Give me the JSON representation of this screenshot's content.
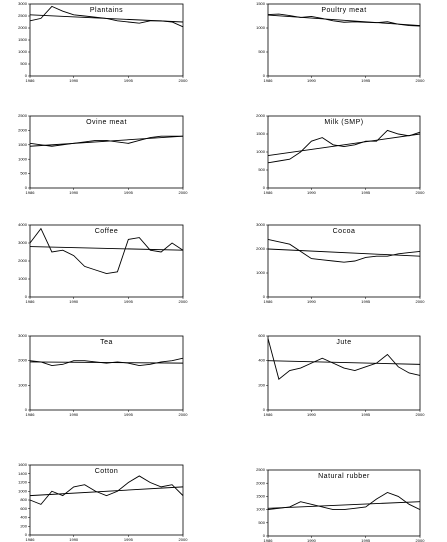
{
  "chart_data": [
    {
      "type": "line",
      "title": "Plantains",
      "x": [
        1986,
        1987,
        1988,
        1989,
        1990,
        1991,
        1992,
        1993,
        1994,
        1995,
        1996,
        1997,
        1998,
        1999,
        2000
      ],
      "xlim": [
        1986,
        2000
      ],
      "xticks": [
        1986,
        1990,
        1995,
        2000
      ],
      "ylim": [
        0,
        3000
      ],
      "yticks": [
        0,
        500,
        1000,
        1500,
        2000,
        2500,
        3000
      ],
      "series": [
        {
          "color": "#000",
          "values": [
            2300,
            2400,
            2900,
            2700,
            2550,
            2500,
            2450,
            2400,
            2300,
            2250,
            2200,
            2300,
            2300,
            2250,
            2050
          ]
        },
        {
          "color": "#000",
          "x": [
            1986,
            2000
          ],
          "values": [
            2550,
            2250
          ]
        }
      ]
    },
    {
      "type": "line",
      "title": "Poultry meat",
      "x": [
        1986,
        1987,
        1988,
        1989,
        1990,
        1991,
        1992,
        1993,
        1994,
        1995,
        1996,
        1997,
        1998,
        1999,
        2000
      ],
      "xlim": [
        1986,
        2000
      ],
      "xticks": [
        1986,
        1990,
        1995,
        2000
      ],
      "ylim": [
        0,
        1500
      ],
      "yticks": [
        0,
        500,
        1000,
        1500
      ],
      "series": [
        {
          "color": "#000",
          "values": [
            1280,
            1290,
            1260,
            1220,
            1240,
            1200,
            1150,
            1120,
            1130,
            1120,
            1110,
            1130,
            1080,
            1050,
            1040
          ]
        },
        {
          "color": "#000",
          "x": [
            1986,
            2000
          ],
          "values": [
            1270,
            1050
          ]
        }
      ]
    },
    {
      "type": "line",
      "title": "Ovine meat",
      "x": [
        1986,
        1987,
        1988,
        1989,
        1990,
        1991,
        1992,
        1993,
        1994,
        1995,
        1996,
        1997,
        1998,
        1999,
        2000
      ],
      "xlim": [
        1986,
        2000
      ],
      "xticks": [
        1986,
        1990,
        1995,
        2000
      ],
      "ylim": [
        0,
        2500
      ],
      "yticks": [
        0,
        500,
        1000,
        1500,
        2000,
        2500
      ],
      "series": [
        {
          "color": "#000",
          "values": [
            1550,
            1500,
            1450,
            1500,
            1550,
            1600,
            1650,
            1650,
            1600,
            1550,
            1650,
            1750,
            1800,
            1800,
            1800
          ]
        },
        {
          "color": "#000",
          "x": [
            1986,
            2000
          ],
          "values": [
            1450,
            1800
          ]
        }
      ]
    },
    {
      "type": "line",
      "title": "Milk (SMP)",
      "x": [
        1986,
        1987,
        1988,
        1989,
        1990,
        1991,
        1992,
        1993,
        1994,
        1995,
        1996,
        1997,
        1998,
        1999,
        2000
      ],
      "xlim": [
        1986,
        2000
      ],
      "xticks": [
        1986,
        1990,
        1995,
        2000
      ],
      "ylim": [
        0,
        2000
      ],
      "yticks": [
        0,
        500,
        1000,
        1500,
        2000
      ],
      "series": [
        {
          "color": "#000",
          "values": [
            700,
            750,
            800,
            1000,
            1300,
            1400,
            1200,
            1150,
            1200,
            1300,
            1300,
            1600,
            1500,
            1450,
            1550
          ]
        },
        {
          "color": "#000",
          "x": [
            1986,
            2000
          ],
          "values": [
            900,
            1500
          ]
        }
      ]
    },
    {
      "type": "line",
      "title": "Coffee",
      "x": [
        1986,
        1987,
        1988,
        1989,
        1990,
        1991,
        1992,
        1993,
        1994,
        1995,
        1996,
        1997,
        1998,
        1999,
        2000
      ],
      "xlim": [
        1986,
        2000
      ],
      "xticks": [
        1986,
        1990,
        1995,
        2000
      ],
      "ylim": [
        0,
        4000
      ],
      "yticks": [
        0,
        1000,
        2000,
        3000,
        4000
      ],
      "series": [
        {
          "color": "#000",
          "values": [
            3000,
            3800,
            2500,
            2600,
            2300,
            1700,
            1500,
            1300,
            1400,
            3200,
            3300,
            2600,
            2500,
            3000,
            2600
          ]
        },
        {
          "color": "#000",
          "x": [
            1986,
            2000
          ],
          "values": [
            2800,
            2600
          ]
        }
      ]
    },
    {
      "type": "line",
      "title": "Cocoa",
      "x": [
        1986,
        1987,
        1988,
        1989,
        1990,
        1991,
        1992,
        1993,
        1994,
        1995,
        1996,
        1997,
        1998,
        1999,
        2000
      ],
      "xlim": [
        1986,
        2000
      ],
      "xticks": [
        1986,
        1990,
        1995,
        2000
      ],
      "ylim": [
        0,
        3000
      ],
      "yticks": [
        0,
        1000,
        2000,
        3000
      ],
      "series": [
        {
          "color": "#000",
          "values": [
            2400,
            2300,
            2200,
            1900,
            1600,
            1550,
            1500,
            1450,
            1500,
            1650,
            1700,
            1700,
            1800,
            1850,
            1900
          ]
        },
        {
          "color": "#000",
          "x": [
            1986,
            2000
          ],
          "values": [
            2000,
            1700
          ]
        }
      ]
    },
    {
      "type": "line",
      "title": "Tea",
      "x": [
        1986,
        1987,
        1988,
        1989,
        1990,
        1991,
        1992,
        1993,
        1994,
        1995,
        1996,
        1997,
        1998,
        1999,
        2000
      ],
      "xlim": [
        1986,
        2000
      ],
      "xticks": [
        1986,
        1990,
        1995,
        2000
      ],
      "ylim": [
        0,
        3000
      ],
      "yticks": [
        0,
        1000,
        2000,
        3000
      ],
      "series": [
        {
          "color": "#000",
          "values": [
            2000,
            1950,
            1800,
            1850,
            2000,
            2000,
            1950,
            1900,
            1950,
            1900,
            1800,
            1850,
            1950,
            2000,
            2100
          ]
        },
        {
          "color": "#000",
          "x": [
            1986,
            2000
          ],
          "values": [
            1950,
            1900
          ]
        }
      ]
    },
    {
      "type": "line",
      "title": "Jute",
      "x": [
        1986,
        1987,
        1988,
        1989,
        1990,
        1991,
        1992,
        1993,
        1994,
        1995,
        1996,
        1997,
        1998,
        1999,
        2000
      ],
      "xlim": [
        1986,
        2000
      ],
      "xticks": [
        1986,
        1990,
        1995,
        2000
      ],
      "ylim": [
        0,
        600
      ],
      "yticks": [
        0,
        200,
        400,
        600
      ],
      "series": [
        {
          "color": "#000",
          "values": [
            580,
            250,
            320,
            340,
            380,
            420,
            380,
            340,
            320,
            350,
            380,
            450,
            350,
            300,
            280
          ]
        },
        {
          "color": "#000",
          "x": [
            1986,
            2000
          ],
          "values": [
            400,
            370
          ]
        }
      ]
    },
    {
      "type": "line",
      "title": "Cotton",
      "x": [
        1986,
        1987,
        1988,
        1989,
        1990,
        1991,
        1992,
        1993,
        1994,
        1995,
        1996,
        1997,
        1998,
        1999,
        2000
      ],
      "xlim": [
        1986,
        2000
      ],
      "xticks": [
        1986,
        1990,
        1995,
        2000
      ],
      "ylim": [
        0,
        1600
      ],
      "yticks": [
        0,
        200,
        400,
        600,
        800,
        1000,
        1200,
        1400,
        1600
      ],
      "series": [
        {
          "color": "#000",
          "values": [
            800,
            700,
            1000,
            900,
            1100,
            1150,
            1000,
            900,
            1000,
            1200,
            1350,
            1200,
            1100,
            1150,
            900
          ]
        },
        {
          "color": "#000",
          "x": [
            1986,
            2000
          ],
          "values": [
            900,
            1100
          ]
        }
      ]
    },
    {
      "type": "line",
      "title": "Natural rubber",
      "x": [
        1986,
        1987,
        1988,
        1989,
        1990,
        1991,
        1992,
        1993,
        1994,
        1995,
        1996,
        1997,
        1998,
        1999,
        2000
      ],
      "xlim": [
        1986,
        2000
      ],
      "xticks": [
        1986,
        1990,
        1995,
        2000
      ],
      "ylim": [
        0,
        2500
      ],
      "yticks": [
        0,
        500,
        1000,
        1500,
        2000,
        2500
      ],
      "series": [
        {
          "color": "#000",
          "values": [
            1000,
            1050,
            1100,
            1300,
            1200,
            1100,
            1000,
            1000,
            1050,
            1100,
            1400,
            1650,
            1500,
            1200,
            1000
          ]
        },
        {
          "color": "#000",
          "x": [
            1986,
            2000
          ],
          "values": [
            1050,
            1300
          ]
        }
      ]
    }
  ]
}
